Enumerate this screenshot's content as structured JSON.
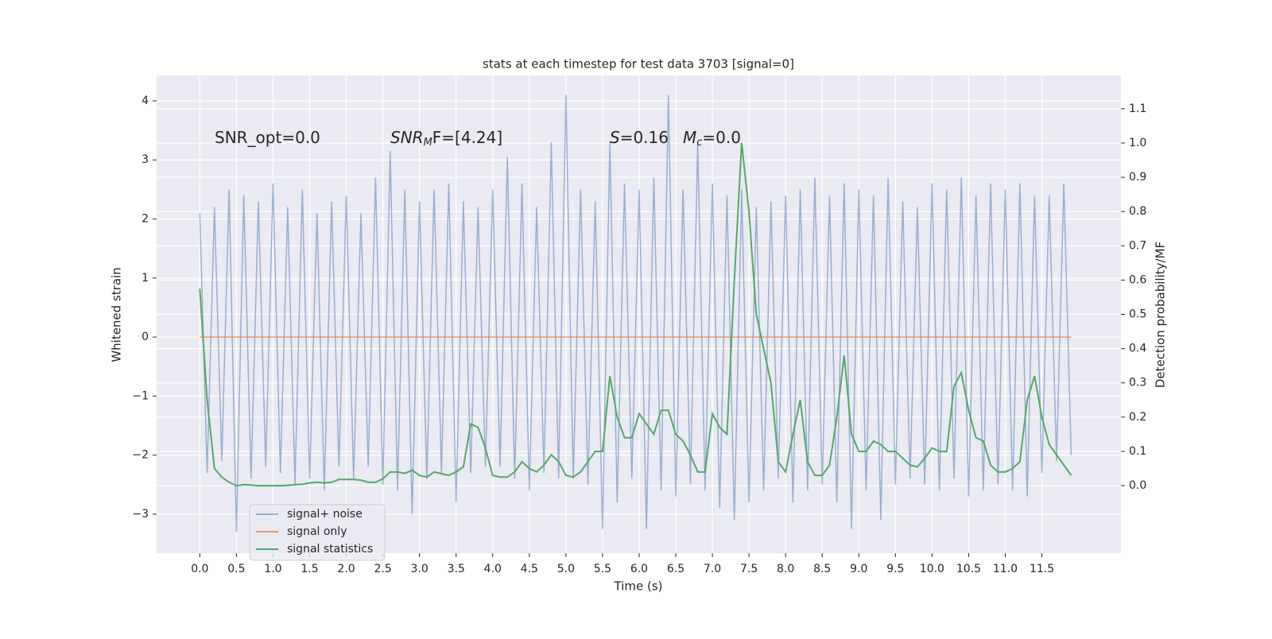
{
  "chart_data": {
    "type": "line",
    "title": "stats at each timestep for test data 3703 [signal=0]",
    "xlabel": "Time (s)",
    "ylabel": "Whitened strain",
    "y2label": "Detection probability/MF",
    "annotations": [
      {
        "parts": [
          "SNR_opt=0.0"
        ]
      },
      {
        "parts": [
          "SNR",
          "M",
          "F=[4.24]"
        ]
      },
      {
        "parts": [
          "S",
          "=0.16"
        ]
      },
      {
        "parts": [
          "M",
          "c",
          "=0.0"
        ]
      }
    ],
    "x": [
      0.0,
      0.1,
      0.2,
      0.3,
      0.4,
      0.5,
      0.6,
      0.7,
      0.8,
      0.9,
      1.0,
      1.1,
      1.2,
      1.3,
      1.4,
      1.5,
      1.6,
      1.7,
      1.8,
      1.9,
      2.0,
      2.1,
      2.2,
      2.3,
      2.4,
      2.5,
      2.6,
      2.7,
      2.8,
      2.9,
      3.0,
      3.1,
      3.2,
      3.3,
      3.4,
      3.5,
      3.6,
      3.7,
      3.8,
      3.9,
      4.0,
      4.1,
      4.2,
      4.3,
      4.4,
      4.5,
      4.6,
      4.7,
      4.8,
      4.9,
      5.0,
      5.1,
      5.2,
      5.3,
      5.4,
      5.5,
      5.6,
      5.7,
      5.8,
      5.9,
      6.0,
      6.1,
      6.2,
      6.3,
      6.4,
      6.5,
      6.6,
      6.7,
      6.8,
      6.9,
      7.0,
      7.1,
      7.2,
      7.3,
      7.4,
      7.5,
      7.6,
      7.7,
      7.8,
      7.9,
      8.0,
      8.1,
      8.2,
      8.3,
      8.4,
      8.5,
      8.6,
      8.7,
      8.8,
      8.9,
      9.0,
      9.1,
      9.2,
      9.3,
      9.4,
      9.5,
      9.6,
      9.7,
      9.8,
      9.9,
      10.0,
      10.1,
      10.2,
      10.3,
      10.4,
      10.5,
      10.6,
      10.7,
      10.8,
      10.9,
      11.0,
      11.1,
      11.2,
      11.3,
      11.4,
      11.5,
      11.6,
      11.7,
      11.8,
      11.9
    ],
    "series": [
      {
        "name": "signal+ noise",
        "color": "#4c72b0",
        "opacity": 0.5,
        "values": [
          2.1,
          -2.3,
          2.2,
          -2.1,
          2.5,
          -3.3,
          2.4,
          -2.4,
          2.3,
          -2.2,
          2.6,
          -2.3,
          2.2,
          -2.5,
          2.5,
          -2.4,
          2.1,
          -2.6,
          2.3,
          -2.2,
          2.4,
          -2.4,
          2.1,
          -2.2,
          2.7,
          -2.5,
          3.15,
          -2.6,
          2.5,
          -3.0,
          2.3,
          -2.4,
          2.5,
          -2.3,
          2.6,
          -2.8,
          2.3,
          -2.3,
          2.2,
          -2.2,
          2.5,
          -2.2,
          3.05,
          -2.4,
          2.6,
          -2.6,
          2.2,
          -2.3,
          3.3,
          -2.4,
          4.1,
          -2.4,
          2.5,
          -2.5,
          2.3,
          -3.25,
          3.3,
          -2.8,
          2.6,
          -2.4,
          2.5,
          -3.25,
          2.7,
          -2.6,
          4.1,
          -2.7,
          2.5,
          -2.5,
          3.3,
          -2.6,
          2.6,
          -2.9,
          2.4,
          -3.1,
          2.5,
          -2.8,
          2.2,
          -2.6,
          2.3,
          -2.4,
          2.4,
          -2.8,
          2.5,
          -2.6,
          2.7,
          -2.5,
          2.4,
          -2.8,
          2.6,
          -3.25,
          2.5,
          -2.6,
          2.4,
          -3.1,
          2.7,
          -2.5,
          2.3,
          -2.4,
          2.2,
          -2.5,
          2.6,
          -2.6,
          2.5,
          -2.4,
          2.7,
          -2.7,
          2.4,
          -2.6,
          2.6,
          -2.5,
          2.5,
          -2.6,
          2.6,
          -2.7,
          2.4,
          -2.3,
          2.4,
          -2.1,
          2.6,
          -2.0
        ]
      },
      {
        "name": "signal only",
        "color": "#dd8452",
        "opacity": 0.8,
        "x": [
          0.0,
          11.9
        ],
        "values": [
          0,
          0
        ]
      },
      {
        "name": "signal statistics",
        "color": "#55a868",
        "opacity": 1,
        "axis": "y2",
        "values": [
          0.575,
          0.25,
          0.05,
          0.025,
          0.01,
          0.0,
          0.003,
          0.002,
          0.0,
          0.0,
          0.0,
          0.0,
          0.001,
          0.003,
          0.004,
          0.008,
          0.01,
          0.008,
          0.01,
          0.018,
          0.018,
          0.018,
          0.016,
          0.01,
          0.01,
          0.02,
          0.04,
          0.04,
          0.036,
          0.045,
          0.03,
          0.025,
          0.04,
          0.035,
          0.03,
          0.04,
          0.055,
          0.18,
          0.17,
          0.11,
          0.03,
          0.025,
          0.025,
          0.04,
          0.07,
          0.05,
          0.04,
          0.06,
          0.09,
          0.07,
          0.03,
          0.025,
          0.04,
          0.07,
          0.1,
          0.1,
          0.32,
          0.2,
          0.14,
          0.14,
          0.21,
          0.18,
          0.15,
          0.22,
          0.22,
          0.15,
          0.13,
          0.09,
          0.04,
          0.04,
          0.21,
          0.17,
          0.15,
          0.6,
          1.0,
          0.8,
          0.5,
          0.4,
          0.3,
          0.07,
          0.04,
          0.15,
          0.25,
          0.07,
          0.03,
          0.03,
          0.06,
          0.2,
          0.38,
          0.15,
          0.1,
          0.1,
          0.13,
          0.12,
          0.1,
          0.1,
          0.08,
          0.06,
          0.055,
          0.08,
          0.11,
          0.1,
          0.1,
          0.29,
          0.33,
          0.22,
          0.14,
          0.13,
          0.06,
          0.04,
          0.04,
          0.05,
          0.07,
          0.25,
          0.32,
          0.2,
          0.12,
          0.09,
          0.06,
          0.03
        ]
      }
    ],
    "xlim": [
      -0.59,
      12.58
    ],
    "ylim": [
      -3.66,
      4.43
    ],
    "y2lim": [
      -0.197,
      1.197
    ],
    "xticks": [
      {
        "value": 0,
        "label": "0.0"
      },
      0.5,
      {
        "value": 1,
        "label": "1.0"
      },
      1.5,
      {
        "value": 2,
        "label": "2.0"
      },
      2.5,
      {
        "value": 3,
        "label": "3.0"
      },
      3.5,
      {
        "value": 4,
        "label": "4.0"
      },
      4.5,
      {
        "value": 5,
        "label": "5.0"
      },
      5.5,
      {
        "value": 6,
        "label": "6.0"
      },
      6.5,
      {
        "value": 7,
        "label": "7.0"
      },
      7.5,
      {
        "value": 8,
        "label": "8.0"
      },
      8.5,
      {
        "value": 9,
        "label": "9.0"
      },
      9.5,
      {
        "value": 10,
        "label": "10.0"
      },
      10.5,
      {
        "value": 11,
        "label": "11.0"
      },
      11.5
    ],
    "yticks": [
      {
        "value": -3,
        "label": "−3"
      },
      {
        "value": -2,
        "label": "−2"
      },
      {
        "value": -1,
        "label": "−1"
      },
      0,
      1,
      2,
      3,
      4
    ],
    "y2ticks": [
      {
        "value": 0,
        "label": "0.0"
      },
      0.1,
      0.2,
      0.3,
      0.4,
      0.5,
      0.6,
      0.7,
      0.8,
      0.9,
      {
        "value": 1,
        "label": "1.0"
      },
      1.1
    ],
    "grid": true,
    "legend": "lower left"
  }
}
